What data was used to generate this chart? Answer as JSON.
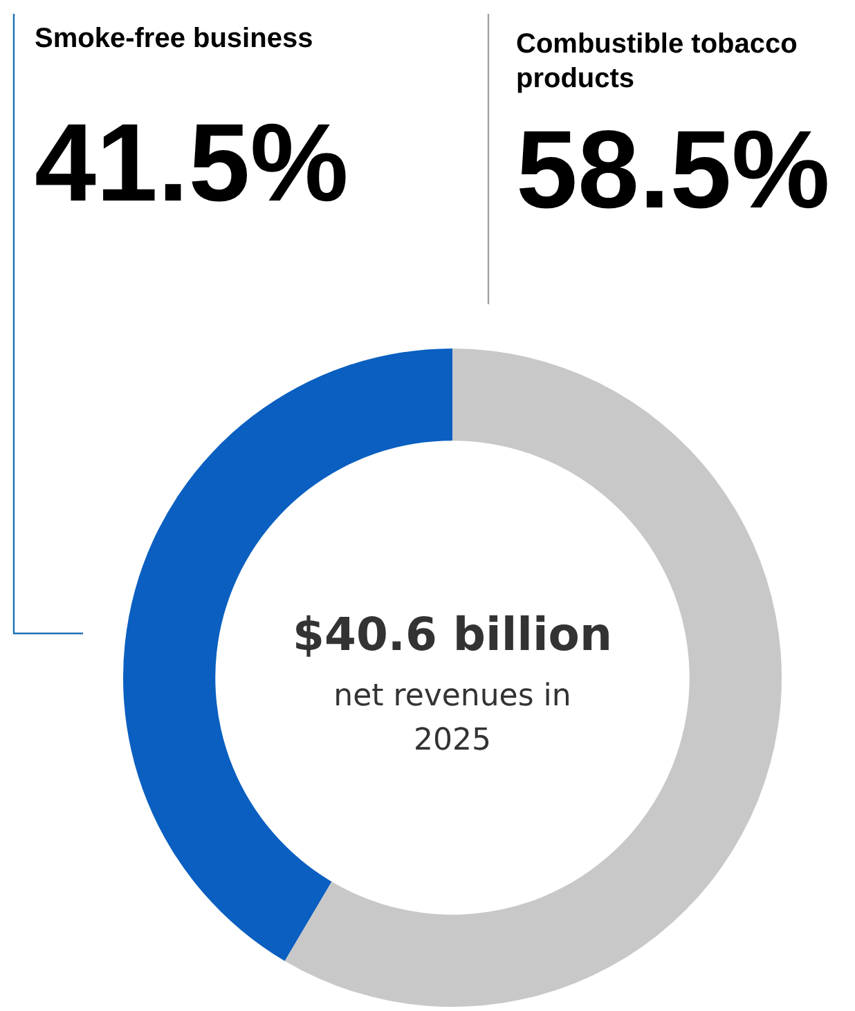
{
  "chart_data": {
    "type": "donut",
    "title": "$40.6 billion",
    "subtitle": "net revenues in 2025",
    "categories": [
      "Smoke-free business",
      "Combustible tobacco products"
    ],
    "values": [
      41.5,
      58.5
    ],
    "colors": [
      "#0a5fc0",
      "#c8c8c8"
    ],
    "value_labels": [
      "41.5%",
      "58.5%"
    ],
    "legend": false
  }
}
